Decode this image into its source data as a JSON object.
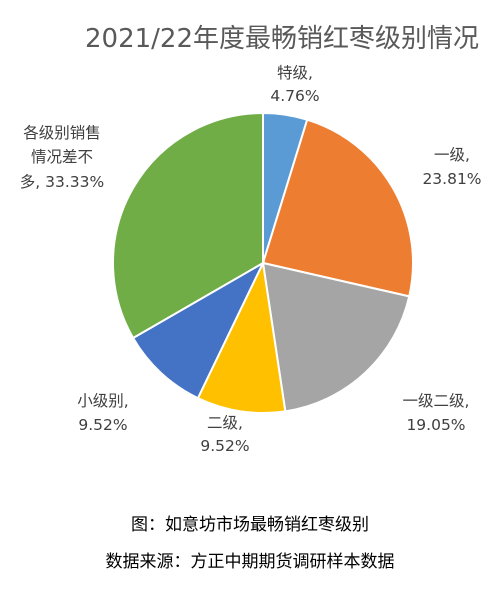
{
  "chart_data": {
    "type": "pie",
    "title": "2021/22年度最畅销红枣级别情况",
    "slices": [
      {
        "label": "特级,",
        "value": 4.76,
        "value_text": "4.76%",
        "color": "#5B9BD5"
      },
      {
        "label": "一级,",
        "value": 23.81,
        "value_text": "23.81%",
        "color": "#ED7D31"
      },
      {
        "label": "一级二级,",
        "value": 19.05,
        "value_text": "19.05%",
        "color": "#A5A5A5"
      },
      {
        "label": "二级,",
        "value": 9.52,
        "value_text": "9.52%",
        "color": "#FFC000"
      },
      {
        "label": "小级别,",
        "value": 9.52,
        "value_text": "9.52%",
        "color": "#4472C4"
      },
      {
        "label": "各级别销售情况差不多,",
        "value": 33.33,
        "value_text": "33.33%",
        "color": "#70AD47"
      }
    ]
  },
  "caption": "图：如意坊市场最畅销红枣级别",
  "source": "数据来源：方正中期期货调研样本数据"
}
